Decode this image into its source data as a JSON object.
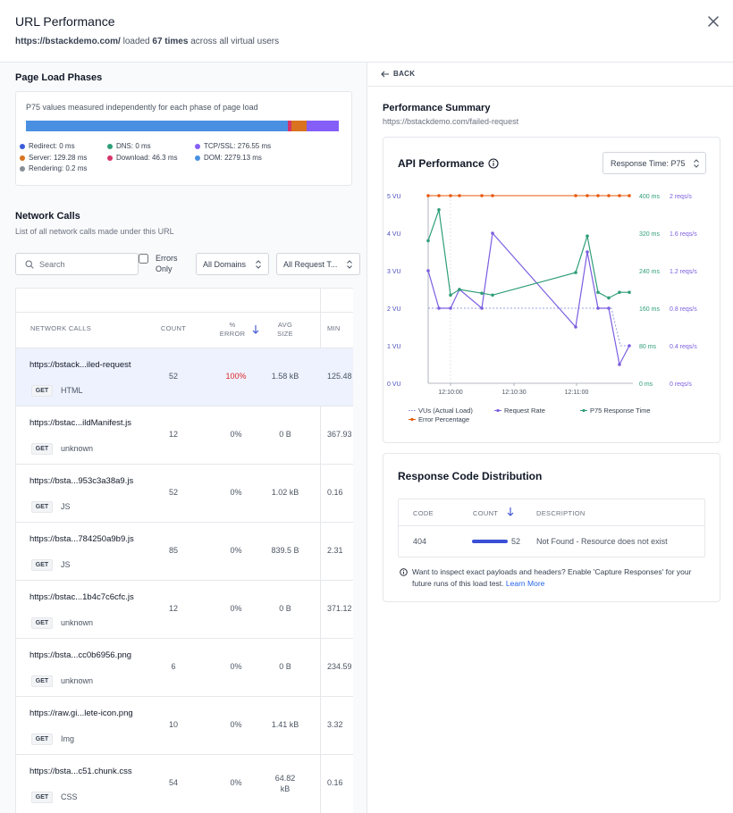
{
  "header": {
    "title": "URL Performance",
    "url": "https://bstackdemo.com/",
    "loaded_prefix": "loaded",
    "count_text": "67 times",
    "suffix": "across all virtual users"
  },
  "phases": {
    "title": "Page Load Phases",
    "description": "P75 values measured independently for each phase of page load",
    "segments": [
      {
        "name": "Redirect",
        "value_ms": 0,
        "color": "#3b5bdb"
      },
      {
        "name": "DNS",
        "value_ms": 0,
        "color": "#2f9e77"
      },
      {
        "name": "TCP/SSL",
        "value_ms": 276.55,
        "color": "#845ef7"
      },
      {
        "name": "Server",
        "value_ms": 129.28,
        "color": "#d9731f"
      },
      {
        "name": "Download",
        "value_ms": 46.3,
        "color": "#d6336c"
      },
      {
        "name": "DOM",
        "value_ms": 2279.13,
        "color": "#4a90e2"
      },
      {
        "name": "Rendering",
        "value_ms": 0.2,
        "color": "#868e96"
      }
    ],
    "legend": {
      "redirect": "Redirect: 0 ms",
      "dns": "DNS: 0 ms",
      "tcp": "TCP/SSL: 276.55 ms",
      "server": "Server: 129.28 ms",
      "download": "Download: 46.3 ms",
      "dom": "DOM: 2279.13 ms",
      "rendering": "Rendering: 0.2 ms"
    }
  },
  "network": {
    "title": "Network Calls",
    "subtitle": "List of all network calls made under this URL",
    "search_placeholder": "Search",
    "errors_only_label": "Errors Only",
    "domains_select": "All Domains",
    "request_select": "All Request T...",
    "columns": {
      "calls": "NETWORK CALLS",
      "count": "COUNT",
      "error_line1": "%",
      "error_line2": "ERROR",
      "size_line1": "AVG",
      "size_line2": "SIZE",
      "min": "MIN"
    },
    "rows": [
      {
        "url": "https://bstack...iled-request",
        "method": "GET",
        "type": "HTML",
        "count": "52",
        "error": "100%",
        "size": "1.58 kB",
        "min": "125.48"
      },
      {
        "url": "https://bstac...ildManifest.js",
        "method": "GET",
        "type": "unknown",
        "count": "12",
        "error": "0%",
        "size": "0 B",
        "min": "367.93"
      },
      {
        "url": "https://bsta...953c3a38a9.js",
        "method": "GET",
        "type": "JS",
        "count": "52",
        "error": "0%",
        "size": "1.02 kB",
        "min": "0.16"
      },
      {
        "url": "https://bsta...784250a9b9.js",
        "method": "GET",
        "type": "JS",
        "count": "85",
        "error": "0%",
        "size": "839.5 B",
        "min": "2.31"
      },
      {
        "url": "https://bstac...1b4c7c6cfc.js",
        "method": "GET",
        "type": "unknown",
        "count": "12",
        "error": "0%",
        "size": "0 B",
        "min": "371.12"
      },
      {
        "url": "https://bsta...cc0b6956.png",
        "method": "GET",
        "type": "unknown",
        "count": "6",
        "error": "0%",
        "size": "0 B",
        "min": "234.59"
      },
      {
        "url": "https://raw.gi...lete-icon.png",
        "method": "GET",
        "type": "Img",
        "count": "10",
        "error": "0%",
        "size": "1.41 kB",
        "min": "3.32"
      },
      {
        "url": "https://bsta...c51.chunk.css",
        "method": "GET",
        "type": "CSS",
        "count": "54",
        "error": "0%",
        "size": "64.82 kB",
        "min": "0.16"
      }
    ]
  },
  "detail": {
    "back_label": "BACK",
    "summary_title": "Performance Summary",
    "summary_url": "https://bstackdemo.com/failed-request",
    "api_title": "API Performance",
    "api_select": "Response Time: P75"
  },
  "chart_data": {
    "type": "line",
    "x_ticks": [
      "12:10:00",
      "12:10:30",
      "12:11:00"
    ],
    "y_left": {
      "ticks": [
        "0 VU",
        "1 VU",
        "2 VU",
        "3 VU",
        "4 VU",
        "5 VU"
      ],
      "ylim": [
        0,
        5
      ]
    },
    "y_mid": {
      "ticks": [
        "0 ms",
        "80 ms",
        "160 ms",
        "240 ms",
        "320 ms",
        "400 ms"
      ],
      "ylim": [
        0,
        400
      ]
    },
    "y_right": {
      "ticks": [
        "0 reqs/s",
        "0.4 reqs/s",
        "0.8 reqs/s",
        "1.2 reqs/s",
        "1.6 reqs/s",
        "2 reqs/s"
      ],
      "ylim": [
        0,
        2
      ]
    },
    "series": [
      {
        "name": "VUs (Actual Load)",
        "color": "#7c83d6",
        "axis": "VU",
        "x": [
          0,
          25,
          40,
          70,
          100,
          130,
          160,
          175,
          190,
          205,
          215,
          225
        ],
        "y": [
          2,
          2,
          2,
          2,
          2,
          2,
          2,
          2,
          2,
          2,
          1,
          1
        ]
      },
      {
        "name": "Request Rate",
        "color": "#7b5ee0",
        "axis": "reqs/s",
        "x": [
          0,
          12,
          25,
          35,
          60,
          72,
          165,
          178,
          190,
          202,
          214,
          225
        ],
        "y": [
          1.2,
          0.8,
          0.8,
          1.0,
          0.8,
          1.6,
          0.6,
          1.4,
          0.8,
          0.8,
          0.2,
          0.4
        ]
      },
      {
        "name": "P75 Response Time",
        "color": "#2f9e77",
        "axis": "ms",
        "x": [
          0,
          12,
          25,
          35,
          60,
          72,
          165,
          178,
          190,
          202,
          214,
          225
        ],
        "y": [
          304,
          370,
          188,
          200,
          192,
          188,
          236,
          314,
          194,
          182,
          194,
          194
        ]
      },
      {
        "name": "Error Percentage",
        "color": "#e8590c",
        "axis": "VU",
        "x": [
          0,
          12,
          25,
          35,
          60,
          72,
          165,
          178,
          190,
          202,
          214,
          225
        ],
        "y": [
          5,
          5,
          5,
          5,
          5,
          5,
          5,
          5,
          5,
          5,
          5,
          5
        ]
      }
    ]
  },
  "response_codes": {
    "title": "Response Code Distribution",
    "col_code": "CODE",
    "col_count": "COUNT",
    "col_desc": "DESCRIPTION",
    "rows": [
      {
        "code": "404",
        "count": "52",
        "description": "Not Found - Resource does not exist"
      }
    ],
    "note": "Want to inspect exact payloads and headers? Enable 'Capture Responses' for your future runs of this load test.",
    "learn_more": "Learn More"
  }
}
